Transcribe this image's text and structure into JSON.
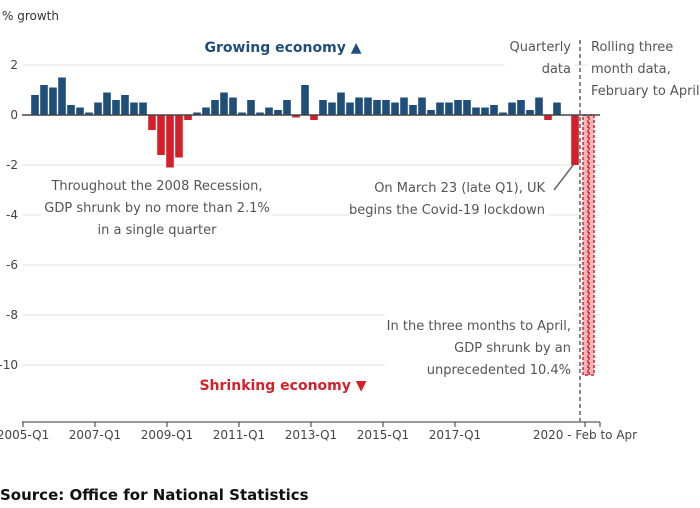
{
  "chart_data": {
    "type": "bar",
    "ylabel": "% growth",
    "ylim": [
      -12,
      2.5
    ],
    "yticks": [
      2,
      0,
      -2,
      -4,
      -6,
      -8,
      -10
    ],
    "xtick_labels": [
      "2005-Q1",
      "2007-Q1",
      "2009-Q1",
      "2011-Q1",
      "2013-Q1",
      "2015-Q1",
      "2017-Q1",
      "2020 - Feb to Apr"
    ],
    "xtick_quarter_index": [
      0,
      8,
      16,
      24,
      32,
      40,
      48
    ],
    "grid": true,
    "colors": {
      "positive": "#1f4e79",
      "negative": "#d3202b",
      "rolling_fill": "#f4b7b9",
      "rolling_edge": "#d3202b"
    },
    "quarterly_values": [
      0.8,
      1.2,
      1.1,
      1.5,
      0.4,
      0.3,
      0.1,
      0.5,
      0.9,
      0.6,
      0.8,
      0.5,
      0.5,
      -0.6,
      -1.6,
      -2.1,
      -1.7,
      -0.2,
      0.1,
      0.3,
      0.6,
      0.9,
      0.7,
      0.1,
      0.6,
      0.1,
      0.3,
      0.2,
      0.6,
      -0.1,
      1.2,
      -0.2,
      0.6,
      0.5,
      0.9,
      0.5,
      0.7,
      0.7,
      0.6,
      0.6,
      0.5,
      0.7,
      0.4,
      0.7,
      0.2,
      0.5,
      0.5,
      0.6,
      0.6,
      0.3,
      0.3,
      0.4,
      0.1,
      0.5,
      0.6,
      0.2,
      0.7,
      -0.2,
      0.5,
      0.0,
      -2.0
    ],
    "rolling_values": [
      -10.4,
      -10.4
    ],
    "annotations": {
      "growing": "Growing economy ▲",
      "shrinking": "Shrinking economy ▼",
      "quarterly_label": [
        "Quarterly",
        "data"
      ],
      "rolling_label": [
        "Rolling three",
        "month data,",
        "February to April"
      ],
      "recession_note": [
        "Throughout the 2008 Recession,",
        "GDP shrunk by no more than 2.1%",
        "in a single quarter"
      ],
      "lockdown_note": [
        "On March 23 (late Q1), UK",
        "begins the Covid-19 lockdown"
      ],
      "april_note": [
        "In the three months to April,",
        "GDP shrunk by an",
        "unprecedented 10.4%"
      ]
    }
  },
  "source": "Source: Office for National Statistics"
}
